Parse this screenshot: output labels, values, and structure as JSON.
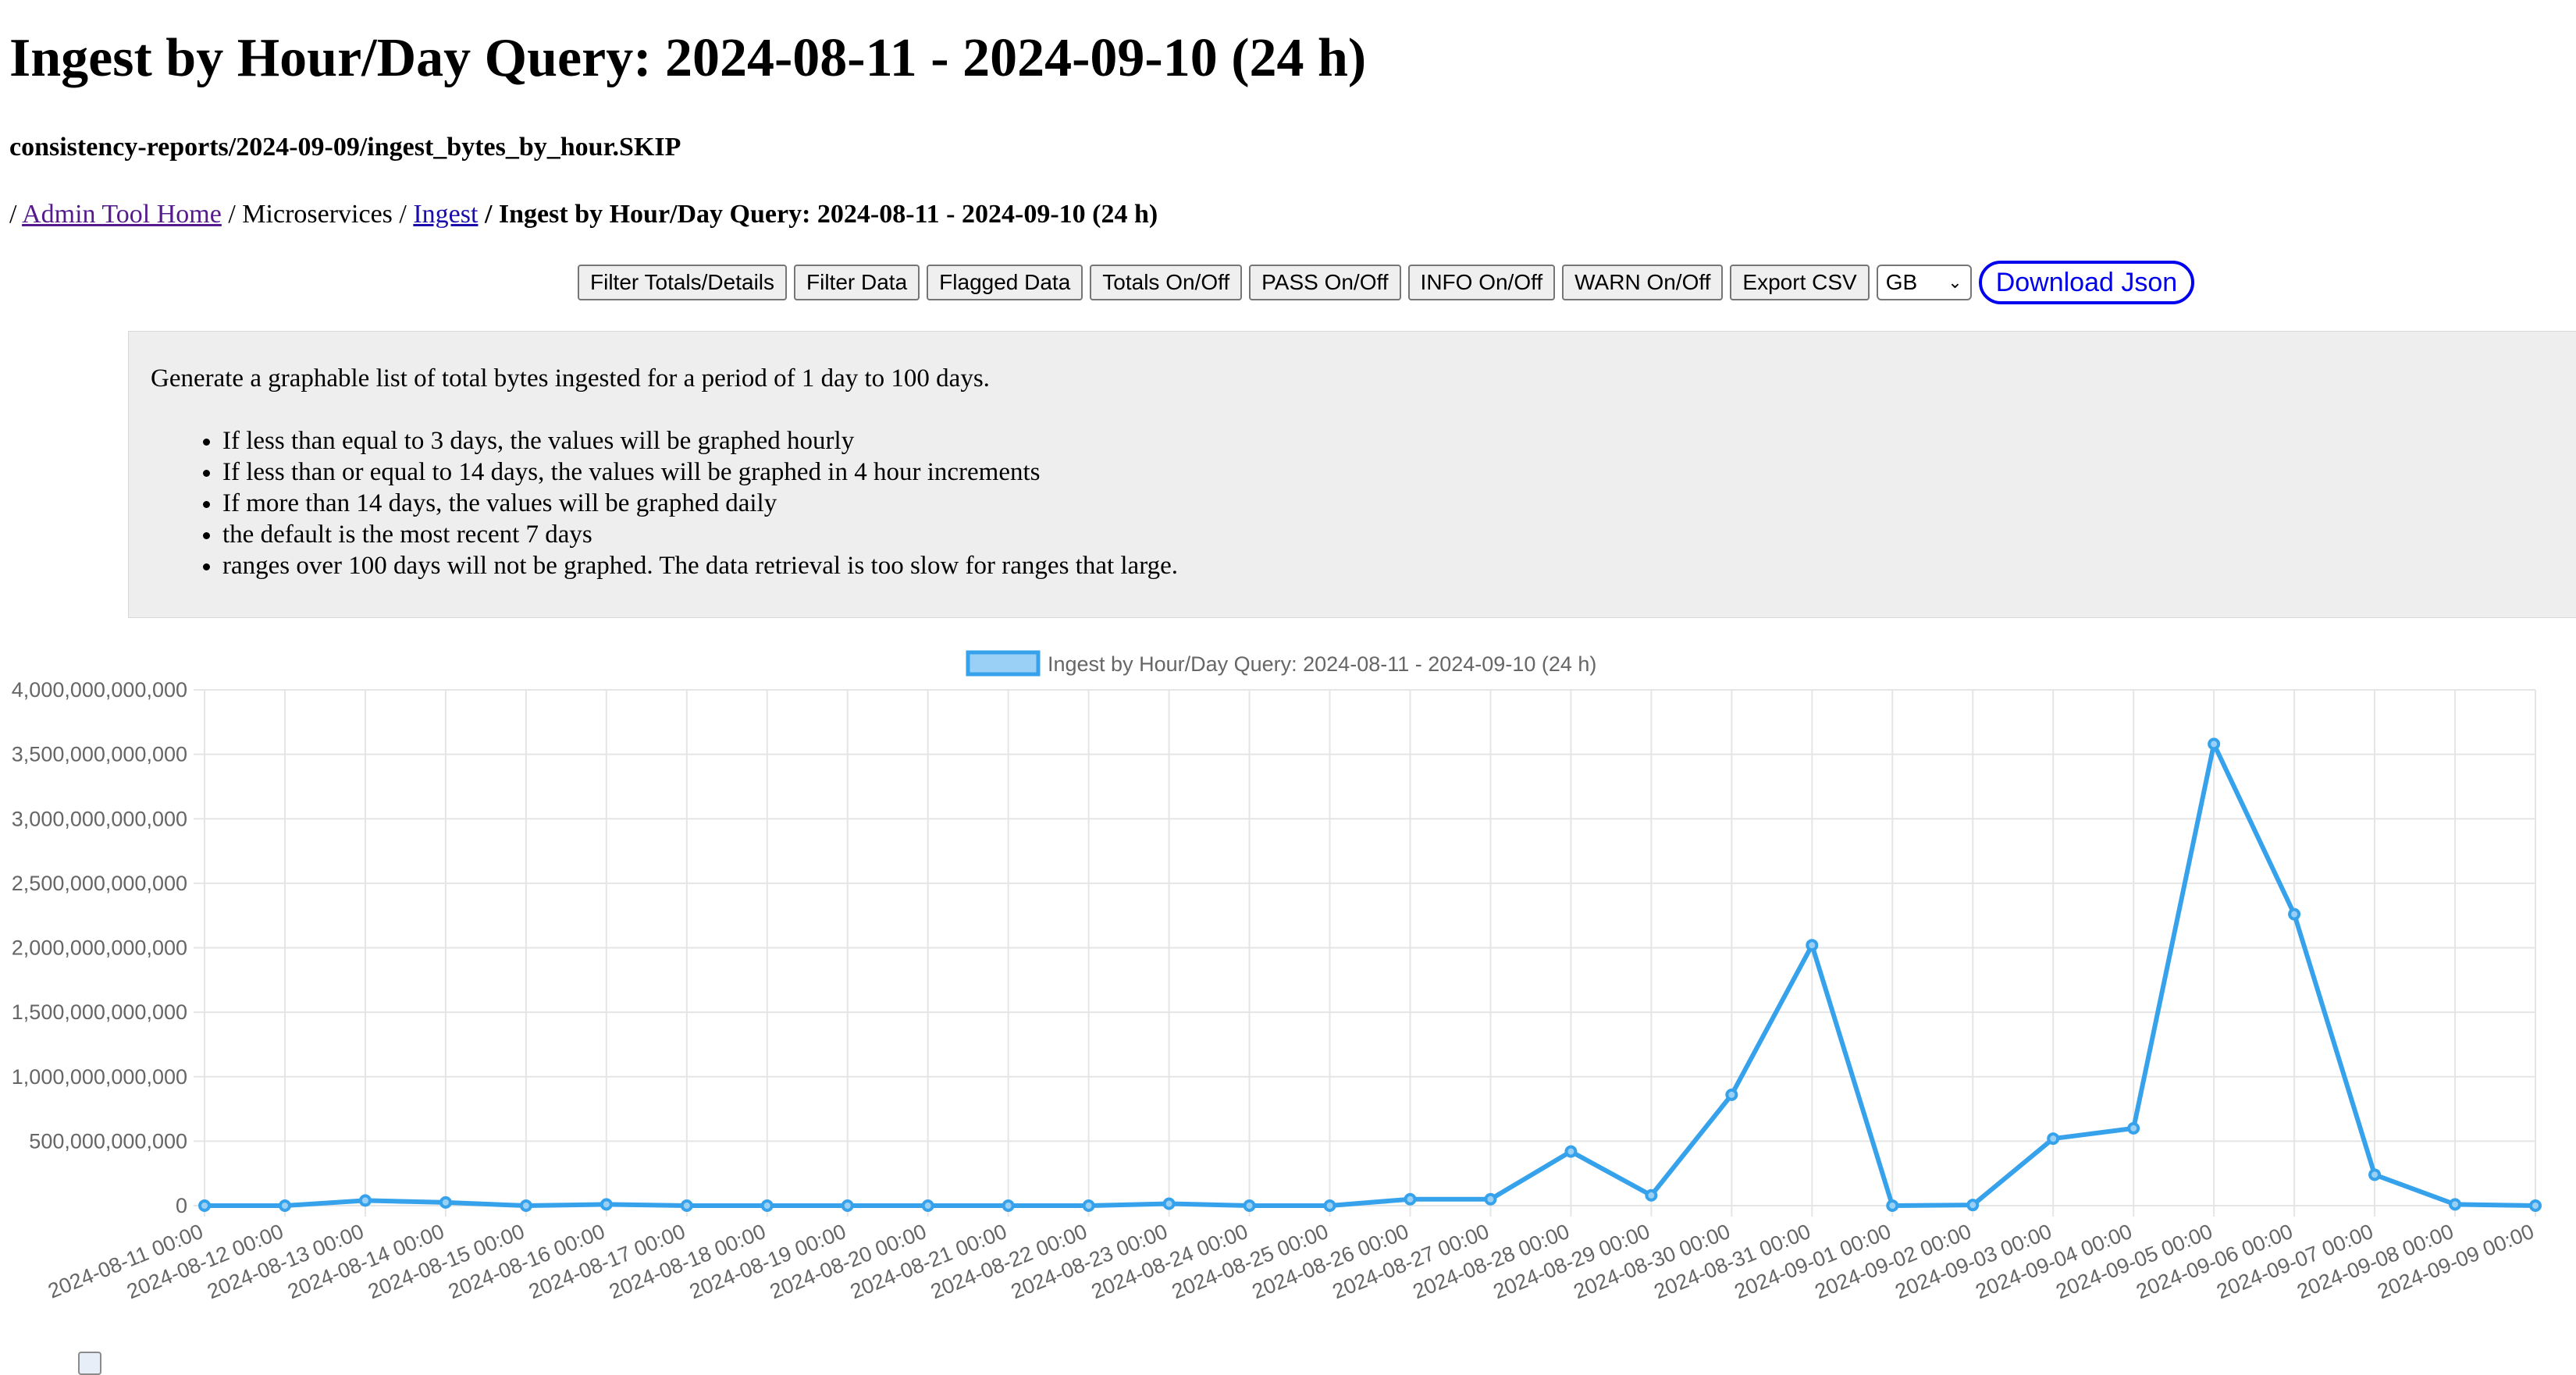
{
  "page": {
    "title": "Ingest by Hour/Day Query: 2024-08-11 - 2024-09-10 (24 h)",
    "file_path": "consistency-reports/2024-09-09/ingest_bytes_by_hour.SKIP"
  },
  "breadcrumb": {
    "sep": "/",
    "home": "Admin Tool Home",
    "microservices": "Microservices",
    "ingest": "Ingest",
    "current": "Ingest by Hour/Day Query: 2024-08-11 - 2024-09-10 (24 h)"
  },
  "toolbar": {
    "filter_totals": "Filter Totals/Details",
    "filter_data": "Filter Data",
    "flagged_data": "Flagged Data",
    "totals_toggle": "Totals On/Off",
    "pass_toggle": "PASS On/Off",
    "info_toggle": "INFO On/Off",
    "warn_toggle": "WARN On/Off",
    "export_csv": "Export CSV",
    "unit_select": "GB",
    "download_json": "Download Json"
  },
  "info": {
    "intro": "Generate a graphable list of total bytes ingested for a period of 1 day to 100 days.",
    "bullets": [
      "If less than equal to 3 days, the values will be graphed hourly",
      "If less than or equal to 14 days, the values will be graphed in 4 hour increments",
      "If more than 14 days, the values will be graphed daily",
      "the default is the most recent 7 days",
      "ranges over 100 days will not be graphed. The data retrieval is too slow for ranges that large."
    ]
  },
  "colors": {
    "series": "#36a2eb",
    "series_fill": "#9ad0f5"
  },
  "chart_data": {
    "type": "line",
    "legend_position": "top",
    "grid": true,
    "ylim": [
      0,
      4000000000000
    ],
    "yticks": [
      0,
      500000000000,
      1000000000000,
      1500000000000,
      2000000000000,
      2500000000000,
      3000000000000,
      3500000000000,
      4000000000000
    ],
    "ytick_labels": [
      "0",
      "500,000,000,000",
      "1,000,000,000,000",
      "1,500,000,000,000",
      "2,000,000,000,000",
      "2,500,000,000,000",
      "3,000,000,000,000",
      "3,500,000,000,000",
      "4,000,000,000,000"
    ],
    "categories": [
      "2024-08-11 00:00",
      "2024-08-12 00:00",
      "2024-08-13 00:00",
      "2024-08-14 00:00",
      "2024-08-15 00:00",
      "2024-08-16 00:00",
      "2024-08-17 00:00",
      "2024-08-18 00:00",
      "2024-08-19 00:00",
      "2024-08-20 00:00",
      "2024-08-21 00:00",
      "2024-08-22 00:00",
      "2024-08-23 00:00",
      "2024-08-24 00:00",
      "2024-08-25 00:00",
      "2024-08-26 00:00",
      "2024-08-27 00:00",
      "2024-08-28 00:00",
      "2024-08-29 00:00",
      "2024-08-30 00:00",
      "2024-08-31 00:00",
      "2024-09-01 00:00",
      "2024-09-02 00:00",
      "2024-09-03 00:00",
      "2024-09-04 00:00",
      "2024-09-05 00:00",
      "2024-09-06 00:00",
      "2024-09-07 00:00",
      "2024-09-08 00:00",
      "2024-09-09 00:00"
    ],
    "series": [
      {
        "name": "Ingest by Hour/Day Query: 2024-08-11 - 2024-09-10 (24 h)",
        "values": [
          0,
          0,
          40000000000,
          25000000000,
          0,
          10000000000,
          0,
          0,
          0,
          0,
          0,
          0,
          15000000000,
          0,
          0,
          50000000000,
          50000000000,
          420000000000,
          80000000000,
          860000000000,
          2020000000000,
          0,
          5000000000,
          520000000000,
          600000000000,
          3580000000000,
          2260000000000,
          240000000000,
          10000000000,
          0
        ]
      }
    ]
  }
}
